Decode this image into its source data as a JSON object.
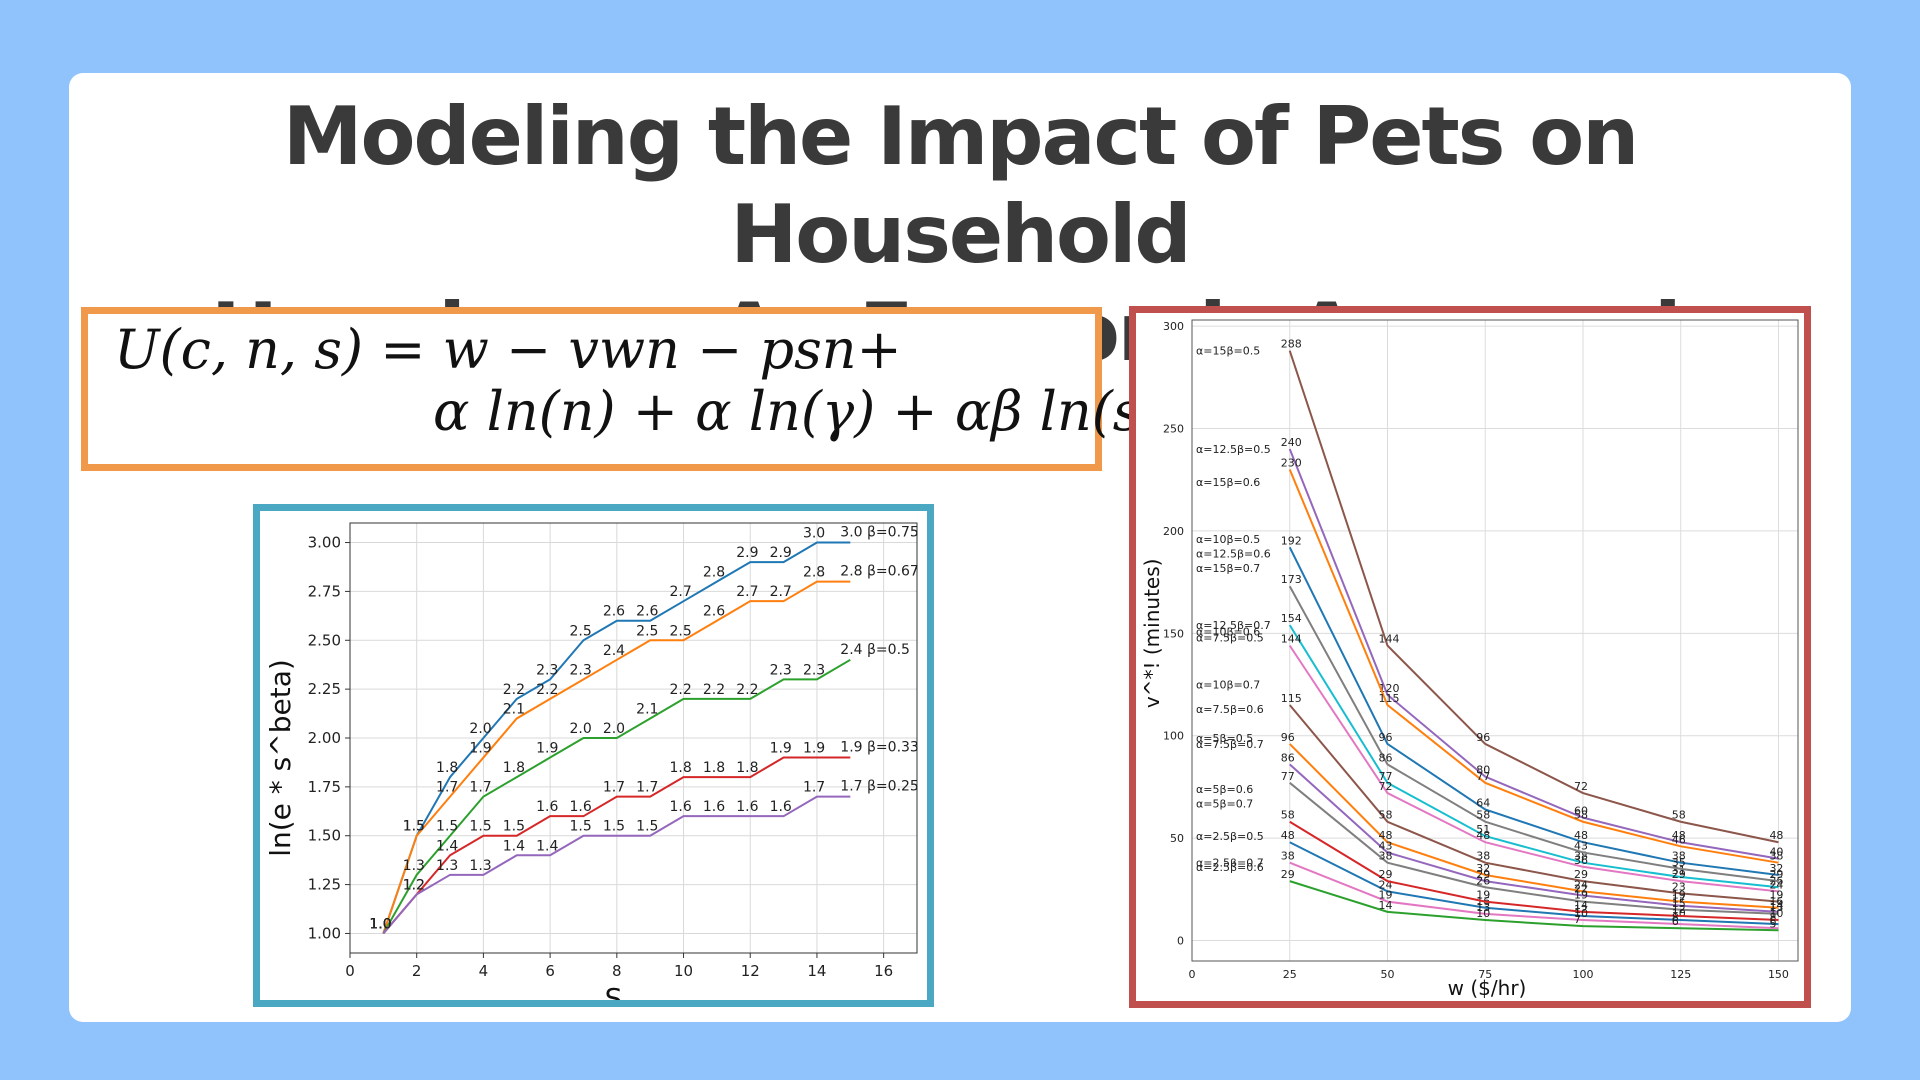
{
  "title": {
    "line1": "Modeling the Impact of Pets on Household",
    "line2": "Happiness: An Economic Approach"
  },
  "formula": {
    "line1": "U(c, n, s) = w − vwn − psn+",
    "line2": "α ln(n) + α ln(γ) + αβ ln(s)"
  },
  "colors": {
    "background": "#90c2fb",
    "card": "#ffffff",
    "title": "#3a3a3a",
    "formula_border": "#f0994a",
    "left_border": "#4ba8c3",
    "right_border": "#c0504d"
  },
  "chart_data": [
    {
      "type": "line",
      "xlabel": "S",
      "ylabel": "ln(e * s^beta)",
      "xlim": [
        0,
        17
      ],
      "ylim": [
        0.9,
        3.1
      ],
      "xticks": [
        "0",
        "2",
        "4",
        "6",
        "8",
        "10",
        "12",
        "14",
        "16"
      ],
      "yticks": [
        "1.00",
        "1.25",
        "1.50",
        "1.75",
        "2.00",
        "2.25",
        "2.50",
        "2.75",
        "3.00"
      ],
      "grid": true,
      "series": [
        {
          "name": "β=0.75",
          "color": "#1f77b4",
          "beta": 0.75,
          "points": [
            [
              1,
              1.0
            ],
            [
              2,
              1.5
            ],
            [
              3,
              1.8
            ],
            [
              4,
              2.0
            ],
            [
              5,
              2.2
            ],
            [
              6,
              2.3
            ],
            [
              7,
              2.5
            ],
            [
              8,
              2.6
            ],
            [
              9,
              2.6
            ],
            [
              10,
              2.7
            ],
            [
              11,
              2.8
            ],
            [
              12,
              2.9
            ],
            [
              13,
              2.9
            ],
            [
              14,
              3.0
            ],
            [
              15,
              3.0
            ]
          ],
          "labels": [
            "1.0",
            "1.5",
            "1.8",
            "2.0",
            "2.2",
            "2.3",
            "2.5",
            "2.6",
            "2.6",
            "2.7",
            "2.8",
            "2.9",
            "2.9",
            "3.0",
            "3.0"
          ]
        },
        {
          "name": "β=0.67",
          "color": "#ff7f0e",
          "beta": 0.67,
          "points": [
            [
              1,
              1.0
            ],
            [
              2,
              1.5
            ],
            [
              3,
              1.7
            ],
            [
              4,
              1.9
            ],
            [
              5,
              2.1
            ],
            [
              6,
              2.2
            ],
            [
              7,
              2.3
            ],
            [
              8,
              2.4
            ],
            [
              9,
              2.5
            ],
            [
              10,
              2.5
            ],
            [
              11,
              2.6
            ],
            [
              12,
              2.7
            ],
            [
              13,
              2.7
            ],
            [
              14,
              2.8
            ],
            [
              15,
              2.8
            ]
          ],
          "labels": [
            "1.0",
            "1.5",
            "1.7",
            "1.9",
            "2.1",
            "2.2",
            "2.3",
            "2.4",
            "2.5",
            "2.5",
            "2.6",
            "2.7",
            "2.7",
            "2.8",
            "2.8"
          ]
        },
        {
          "name": "β=0.5",
          "color": "#2ca02c",
          "beta": 0.5,
          "points": [
            [
              1,
              1.0
            ],
            [
              2,
              1.3
            ],
            [
              3,
              1.5
            ],
            [
              4,
              1.7
            ],
            [
              5,
              1.8
            ],
            [
              6,
              1.9
            ],
            [
              7,
              2.0
            ],
            [
              8,
              2.0
            ],
            [
              9,
              2.1
            ],
            [
              10,
              2.2
            ],
            [
              11,
              2.2
            ],
            [
              12,
              2.2
            ],
            [
              13,
              2.3
            ],
            [
              14,
              2.3
            ],
            [
              15,
              2.4
            ]
          ],
          "labels": [
            "1.0",
            "1.3",
            "1.5",
            "1.7",
            "1.8",
            "1.9",
            "2.0",
            "2.0",
            "2.1",
            "2.2",
            "2.2",
            "2.2",
            "2.3",
            "2.3",
            "2.4"
          ]
        },
        {
          "name": "β=0.33",
          "color": "#d62728",
          "beta": 0.33,
          "points": [
            [
              1,
              1.0
            ],
            [
              2,
              1.2
            ],
            [
              3,
              1.4
            ],
            [
              4,
              1.5
            ],
            [
              5,
              1.5
            ],
            [
              6,
              1.6
            ],
            [
              7,
              1.6
            ],
            [
              8,
              1.7
            ],
            [
              9,
              1.7
            ],
            [
              10,
              1.8
            ],
            [
              11,
              1.8
            ],
            [
              12,
              1.8
            ],
            [
              13,
              1.9
            ],
            [
              14,
              1.9
            ],
            [
              15,
              1.9
            ]
          ],
          "labels": [
            "1.0",
            "1.2",
            "1.4",
            "1.5",
            "1.5",
            "1.6",
            "1.6",
            "1.7",
            "1.7",
            "1.8",
            "1.8",
            "1.8",
            "1.9",
            "1.9",
            "1.9"
          ]
        },
        {
          "name": "β=0.25",
          "color": "#9467bd",
          "beta": 0.25,
          "points": [
            [
              1,
              1.0
            ],
            [
              2,
              1.2
            ],
            [
              3,
              1.3
            ],
            [
              4,
              1.3
            ],
            [
              5,
              1.4
            ],
            [
              6,
              1.4
            ],
            [
              7,
              1.5
            ],
            [
              8,
              1.5
            ],
            [
              9,
              1.5
            ],
            [
              10,
              1.6
            ],
            [
              11,
              1.6
            ],
            [
              12,
              1.6
            ],
            [
              13,
              1.6
            ],
            [
              14,
              1.7
            ],
            [
              15,
              1.7
            ]
          ],
          "labels": [
            "1.0",
            "1.2",
            "1.3",
            "1.3",
            "1.4",
            "1.4",
            "1.5",
            "1.5",
            "1.5",
            "1.6",
            "1.6",
            "1.6",
            "1.6",
            "1.7",
            "1.7"
          ]
        }
      ],
      "end_labels": [
        "3.0 β=0.75",
        "2.8 β=0.67",
        "2.4 β=0.5",
        "1.9 β=0.33",
        "1.7 β=0.25"
      ]
    },
    {
      "type": "line",
      "xlabel": "w ($/hr)",
      "ylabel": "v^*! (minutes)",
      "xlim": [
        0,
        155
      ],
      "ylim": [
        -10,
        303
      ],
      "xticks": [
        "0",
        "25",
        "50",
        "75",
        "100",
        "125",
        "150"
      ],
      "yticks": [
        "0",
        "50",
        "100",
        "150",
        "200",
        "250",
        "300"
      ],
      "x": [
        25,
        50,
        75,
        100,
        125,
        150
      ],
      "grid": true,
      "series": [
        {
          "name": "α=15β=0.5",
          "color": "#8c564b",
          "values": [
            288,
            144,
            96,
            72,
            58,
            48
          ]
        },
        {
          "name": "α=12.5β=0.5",
          "color": "#9467bd",
          "values": [
            240,
            120,
            80,
            60,
            48,
            40
          ]
        },
        {
          "name": "α=15β=0.6",
          "color": "#ff7f0e",
          "values": [
            230,
            115,
            77,
            58,
            46,
            38
          ]
        },
        {
          "name": "α=10β=0.5",
          "color": "#1f77b4",
          "values": [
            192,
            96,
            64,
            48,
            38,
            32
          ]
        },
        {
          "name": "α=12.5β=0.6",
          "color": "#17becf",
          "values": [
            154,
            77,
            51,
            38,
            31,
            26
          ]
        },
        {
          "name": "α=15β=0.7",
          "color": "#7f7f7f",
          "values": [
            173,
            86,
            58,
            43,
            35,
            29
          ]
        },
        {
          "name": "α=7.5β=0.5",
          "color": "#e377c2",
          "values": [
            144,
            72,
            48,
            36,
            29,
            24
          ]
        },
        {
          "name": "α=10β=0.7",
          "color": "#8c564b",
          "values": [
            115,
            58,
            38,
            29,
            23,
            19
          ]
        },
        {
          "name": "α=7.5β=0.6",
          "color": "#ff7f0e",
          "values": [
            96,
            48,
            32,
            24,
            19,
            16
          ]
        },
        {
          "name": "α=7.5β=0.7",
          "color": "#9467bd",
          "values": [
            86,
            43,
            29,
            22,
            17,
            14
          ]
        },
        {
          "name": "α=5β=0.6",
          "color": "#7f7f7f",
          "values": [
            77,
            38,
            26,
            19,
            15,
            13
          ]
        },
        {
          "name": "α=2.5β=0.5",
          "color": "#1f77b4",
          "values": [
            48,
            24,
            16,
            12,
            10,
            8
          ]
        },
        {
          "name": "α=5β=0.5",
          "color": "#d62728",
          "values": [
            58,
            29,
            19,
            14,
            12,
            10
          ]
        },
        {
          "name": "α=2.5β=0.7",
          "color": "#e377c2",
          "values": [
            38,
            19,
            13,
            10,
            8,
            6
          ]
        },
        {
          "name": "α=2.5β=0.6",
          "color": "#2ca02c",
          "values": [
            29,
            14,
            10,
            7,
            6,
            5
          ]
        }
      ],
      "side_labels": [
        {
          "text": "α=15β=0.5",
          "value": 288
        },
        {
          "text": "α=12.5β=0.5",
          "value": 240
        },
        {
          "text": "α=15β=0.6",
          "value": 224
        },
        {
          "text": "α=10β=0.5",
          "value": 196
        },
        {
          "text": "α=12.5β=0.6",
          "value": 189
        },
        {
          "text": "α=15β=0.7",
          "value": 182
        },
        {
          "text": "α=12.5β=0.7",
          "value": 154
        },
        {
          "text": "α=10β=0.6",
          "value": 151
        },
        {
          "text": "α=7.5β=0.5",
          "value": 148
        },
        {
          "text": "α=10β=0.7",
          "value": 125
        },
        {
          "text": "α=7.5β=0.6",
          "value": 113
        },
        {
          "text": "α=5β=0.5",
          "value": 99
        },
        {
          "text": "α=7.5β=0.7",
          "value": 96
        },
        {
          "text": "α=5β=0.6",
          "value": 74
        },
        {
          "text": "α=5β=0.7",
          "value": 67
        },
        {
          "text": "α=2.5β=0.5",
          "value": 51
        },
        {
          "text": "α=2.5β=0.7",
          "value": 38
        },
        {
          "text": "α=2.5β=0.6",
          "value": 36
        }
      ]
    }
  ]
}
